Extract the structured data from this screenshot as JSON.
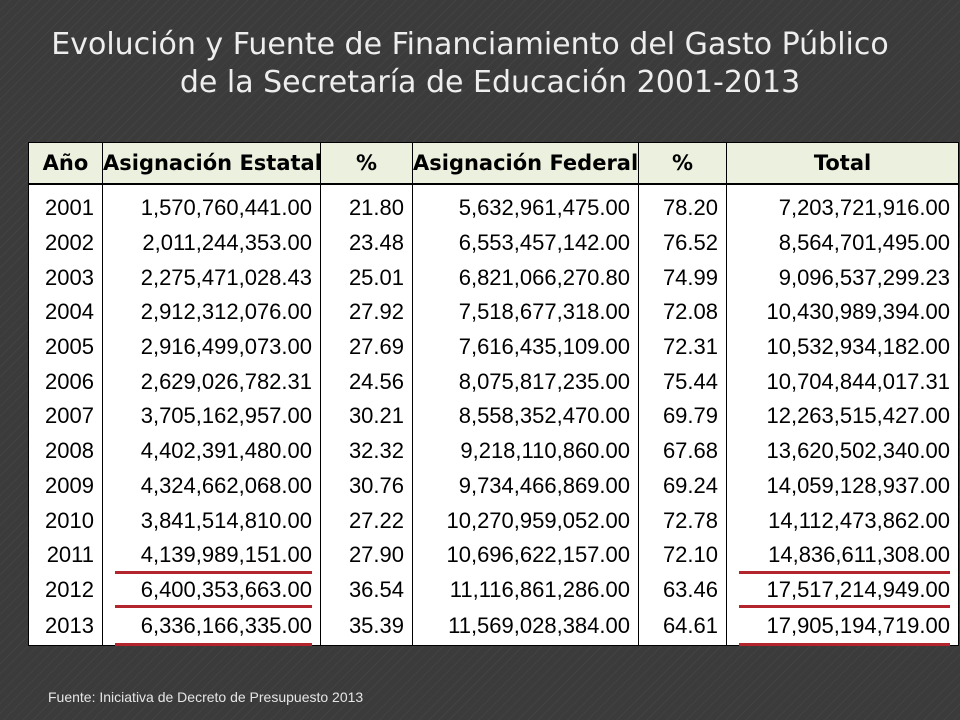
{
  "title": {
    "line1": "Evolución y Fuente de Financiamiento del Gasto Público",
    "line2": "de la Secretaría de Educación 2001-2013"
  },
  "table": {
    "headers": [
      "Año",
      "Asignación Estatal",
      "%",
      "Asignación Federal",
      "%",
      "Total"
    ],
    "rows": [
      [
        "2001",
        "1,570,760,441.00",
        "21.80",
        "5,632,961,475.00",
        "78.20",
        "7,203,721,916.00"
      ],
      [
        "2002",
        "2,011,244,353.00",
        "23.48",
        "6,553,457,142.00",
        "76.52",
        "8,564,701,495.00"
      ],
      [
        "2003",
        "2,275,471,028.43",
        "25.01",
        "6,821,066,270.80",
        "74.99",
        "9,096,537,299.23"
      ],
      [
        "2004",
        "2,912,312,076.00",
        "27.92",
        "7,518,677,318.00",
        "72.08",
        "10,430,989,394.00"
      ],
      [
        "2005",
        "2,916,499,073.00",
        "27.69",
        "7,616,435,109.00",
        "72.31",
        "10,532,934,182.00"
      ],
      [
        "2006",
        "2,629,026,782.31",
        "24.56",
        "8,075,817,235.00",
        "75.44",
        "10,704,844,017.31"
      ],
      [
        "2007",
        "3,705,162,957.00",
        "30.21",
        "8,558,352,470.00",
        "69.79",
        "12,263,515,427.00"
      ],
      [
        "2008",
        "4,402,391,480.00",
        "32.32",
        "9,218,110,860.00",
        "67.68",
        "13,620,502,340.00"
      ],
      [
        "2009",
        "4,324,662,068.00",
        "30.76",
        "9,734,466,869.00",
        "69.24",
        "14,059,128,937.00"
      ],
      [
        "2010",
        "3,841,514,810.00",
        "27.22",
        "10,270,959,052.00",
        "72.78",
        "14,112,473,862.00"
      ],
      [
        "2011",
        "4,139,989,151.00",
        "27.90",
        "10,696,622,157.00",
        "72.10",
        "14,836,611,308.00"
      ],
      [
        "2012",
        "6,400,353,663.00",
        "36.54",
        "11,116,861,286.00",
        "63.46",
        "17,517,214,949.00"
      ],
      [
        "2013",
        "6,336,166,335.00",
        "35.39",
        "11,569,028,384.00",
        "64.61",
        "17,905,194,719.00"
      ]
    ],
    "underlined_years": [
      "2011",
      "2012",
      "2013"
    ],
    "underline_color": "#b3242c",
    "header_bg": "#ebf1de"
  },
  "source": "Fuente: Iniciativa de Decreto de Presupuesto 2013"
}
